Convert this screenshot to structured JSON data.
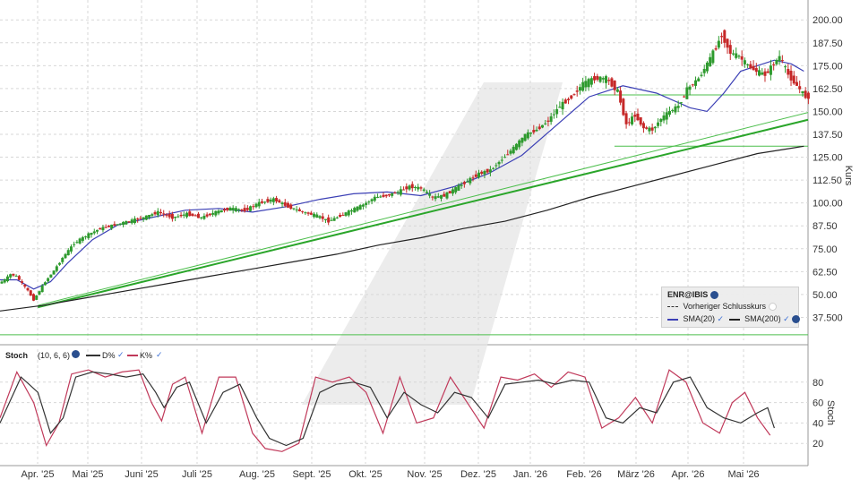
{
  "chart_data": [
    {
      "type": "candlestick",
      "symbol": "ENR@IBIS",
      "ylabel": "Kurs",
      "ylim": [
        25,
        205
      ],
      "yticks": [
        "200.00",
        "187.50",
        "175.00",
        "162.50",
        "150.00",
        "137.50",
        "125.00",
        "112.50",
        "100.00",
        "87.50",
        "75.00",
        "62.50",
        "50.00",
        "37.500"
      ],
      "xticks": [
        "Apr. '25",
        "Mai '25",
        "Juni '25",
        "Juli '25",
        "Aug. '25",
        "Sept. '25",
        "Okt. '25",
        "Nov. '25",
        "Dez. '25",
        "Jan. '26",
        "Feb. '26",
        "März '26",
        "Apr. '26",
        "Mai '26"
      ],
      "grid": true,
      "legend_placement": "bottom-right",
      "legend": {
        "title": "ENR@IBIS",
        "prev_close_label": "Vorheriger Schlusskurs",
        "sma20_label": "SMA(20)",
        "sma200_label": "SMA(200)"
      },
      "price_anchors": [
        [
          0,
          56
        ],
        [
          4,
          58
        ],
        [
          8,
          61
        ],
        [
          12,
          60
        ],
        [
          16,
          56
        ],
        [
          20,
          52
        ],
        [
          24,
          47
        ],
        [
          28,
          52
        ],
        [
          32,
          57
        ],
        [
          38,
          63
        ],
        [
          44,
          70
        ],
        [
          52,
          78
        ],
        [
          60,
          82
        ],
        [
          70,
          86
        ],
        [
          80,
          88
        ],
        [
          90,
          90
        ],
        [
          100,
          92
        ],
        [
          110,
          95
        ],
        [
          120,
          92
        ],
        [
          130,
          94
        ],
        [
          140,
          92
        ],
        [
          150,
          95
        ],
        [
          160,
          97
        ],
        [
          170,
          96
        ],
        [
          180,
          100
        ],
        [
          190,
          102
        ],
        [
          200,
          98
        ],
        [
          210,
          95
        ],
        [
          220,
          93
        ],
        [
          228,
          90
        ],
        [
          236,
          93
        ],
        [
          244,
          96
        ],
        [
          252,
          99
        ],
        [
          260,
          103
        ],
        [
          268,
          104
        ],
        [
          276,
          106
        ],
        [
          284,
          109
        ],
        [
          292,
          108
        ],
        [
          300,
          103
        ],
        [
          308,
          104
        ],
        [
          316,
          108
        ],
        [
          324,
          112
        ],
        [
          332,
          116
        ],
        [
          340,
          118
        ],
        [
          348,
          124
        ],
        [
          356,
          130
        ],
        [
          364,
          137
        ],
        [
          372,
          140
        ],
        [
          380,
          145
        ],
        [
          388,
          153
        ],
        [
          396,
          158
        ],
        [
          404,
          165
        ],
        [
          412,
          168
        ],
        [
          420,
          168
        ],
        [
          428,
          161
        ],
        [
          434,
          143
        ],
        [
          440,
          148
        ],
        [
          446,
          141
        ],
        [
          452,
          140
        ],
        [
          458,
          146
        ],
        [
          464,
          150
        ],
        [
          470,
          153
        ],
        [
          476,
          162
        ],
        [
          484,
          168
        ],
        [
          490,
          176
        ],
        [
          496,
          185
        ],
        [
          500,
          192
        ],
        [
          506,
          182
        ],
        [
          512,
          180
        ],
        [
          518,
          175
        ],
        [
          524,
          172
        ],
        [
          530,
          170
        ],
        [
          536,
          176
        ],
        [
          540,
          180
        ],
        [
          546,
          170
        ],
        [
          552,
          164
        ],
        [
          558,
          158
        ]
      ],
      "sma20": [
        [
          0,
          58
        ],
        [
          20,
          58
        ],
        [
          40,
          53
        ],
        [
          60,
          57
        ],
        [
          80,
          67
        ],
        [
          110,
          80
        ],
        [
          140,
          88
        ],
        [
          180,
          92
        ],
        [
          220,
          96
        ],
        [
          260,
          97
        ],
        [
          300,
          95
        ],
        [
          340,
          98
        ],
        [
          380,
          102
        ],
        [
          420,
          105
        ],
        [
          460,
          106
        ],
        [
          500,
          104
        ],
        [
          540,
          109
        ],
        [
          580,
          116
        ],
        [
          620,
          126
        ],
        [
          660,
          142
        ],
        [
          700,
          158
        ],
        [
          740,
          164
        ],
        [
          780,
          160
        ],
        [
          820,
          152
        ],
        [
          840,
          150
        ],
        [
          860,
          160
        ],
        [
          880,
          172
        ],
        [
          900,
          175
        ],
        [
          920,
          178
        ],
        [
          940,
          176
        ],
        [
          955,
          172
        ]
      ],
      "sma200": [
        [
          0,
          41
        ],
        [
          50,
          44
        ],
        [
          100,
          48
        ],
        [
          150,
          52
        ],
        [
          200,
          56
        ],
        [
          250,
          60
        ],
        [
          300,
          64
        ],
        [
          350,
          68
        ],
        [
          400,
          72
        ],
        [
          450,
          77
        ],
        [
          500,
          81
        ],
        [
          550,
          86
        ],
        [
          600,
          90
        ],
        [
          650,
          96
        ],
        [
          700,
          103
        ],
        [
          750,
          109
        ],
        [
          800,
          115
        ],
        [
          850,
          121
        ],
        [
          900,
          127
        ],
        [
          955,
          131
        ]
      ],
      "trendlines": [
        {
          "name": "",
          "x": [
            45,
            965
          ],
          "y": [
            43,
            146
          ],
          "color": "#2aa52a",
          "width": 2
        },
        {
          "name": "",
          "x": [
            45,
            965
          ],
          "y": [
            44,
            150
          ],
          "color": "#4dbf4d",
          "width": 1
        }
      ],
      "horizontal_lines": [
        {
          "y": 159,
          "x": [
            710,
            965
          ]
        },
        {
          "y": 131,
          "x": [
            730,
            965
          ]
        },
        {
          "y": 28,
          "x": [
            0,
            965
          ]
        }
      ]
    },
    {
      "type": "line",
      "label": "Stoch",
      "params": "(10, 6, 6)",
      "ylabel": "Stoch",
      "ylim": [
        0,
        100
      ],
      "yticks": [
        "80",
        "60",
        "40",
        "20"
      ],
      "series": [
        {
          "name": "D%",
          "color": "#333333",
          "values": [
            [
              0,
              40
            ],
            [
              25,
              85
            ],
            [
              45,
              70
            ],
            [
              60,
              30
            ],
            [
              75,
              45
            ],
            [
              90,
              85
            ],
            [
              110,
              90
            ],
            [
              130,
              88
            ],
            [
              150,
              85
            ],
            [
              170,
              88
            ],
            [
              185,
              70
            ],
            [
              195,
              55
            ],
            [
              210,
              75
            ],
            [
              225,
              80
            ],
            [
              245,
              40
            ],
            [
              265,
              70
            ],
            [
              285,
              78
            ],
            [
              305,
              45
            ],
            [
              320,
              25
            ],
            [
              340,
              18
            ],
            [
              360,
              25
            ],
            [
              380,
              70
            ],
            [
              400,
              78
            ],
            [
              420,
              80
            ],
            [
              440,
              75
            ],
            [
              460,
              45
            ],
            [
              480,
              70
            ],
            [
              500,
              58
            ],
            [
              520,
              50
            ],
            [
              540,
              70
            ],
            [
              560,
              65
            ],
            [
              580,
              45
            ],
            [
              600,
              78
            ],
            [
              620,
              80
            ],
            [
              640,
              82
            ],
            [
              660,
              78
            ],
            [
              680,
              82
            ],
            [
              700,
              80
            ],
            [
              720,
              45
            ],
            [
              740,
              40
            ],
            [
              760,
              55
            ],
            [
              780,
              50
            ],
            [
              800,
              80
            ],
            [
              820,
              85
            ],
            [
              840,
              55
            ],
            [
              860,
              45
            ],
            [
              880,
              40
            ],
            [
              900,
              50
            ],
            [
              912,
              55
            ],
            [
              920,
              35
            ]
          ]
        },
        {
          "name": "K%",
          "color": "#c0395a",
          "values": [
            [
              0,
              45
            ],
            [
              20,
              90
            ],
            [
              40,
              60
            ],
            [
              55,
              18
            ],
            [
              70,
              40
            ],
            [
              85,
              88
            ],
            [
              105,
              92
            ],
            [
              125,
              85
            ],
            [
              145,
              90
            ],
            [
              165,
              92
            ],
            [
              180,
              60
            ],
            [
              192,
              42
            ],
            [
              205,
              78
            ],
            [
              220,
              85
            ],
            [
              240,
              30
            ],
            [
              260,
              85
            ],
            [
              280,
              85
            ],
            [
              300,
              30
            ],
            [
              315,
              15
            ],
            [
              335,
              12
            ],
            [
              355,
              20
            ],
            [
              375,
              85
            ],
            [
              395,
              80
            ],
            [
              415,
              85
            ],
            [
              435,
              70
            ],
            [
              455,
              30
            ],
            [
              475,
              85
            ],
            [
              495,
              40
            ],
            [
              515,
              45
            ],
            [
              535,
              85
            ],
            [
              555,
              60
            ],
            [
              575,
              35
            ],
            [
              595,
              85
            ],
            [
              615,
              82
            ],
            [
              635,
              88
            ],
            [
              655,
              75
            ],
            [
              675,
              90
            ],
            [
              695,
              85
            ],
            [
              715,
              35
            ],
            [
              735,
              45
            ],
            [
              755,
              65
            ],
            [
              775,
              40
            ],
            [
              795,
              92
            ],
            [
              815,
              80
            ],
            [
              835,
              40
            ],
            [
              855,
              30
            ],
            [
              870,
              60
            ],
            [
              885,
              70
            ],
            [
              900,
              45
            ],
            [
              915,
              28
            ]
          ]
        }
      ]
    }
  ]
}
